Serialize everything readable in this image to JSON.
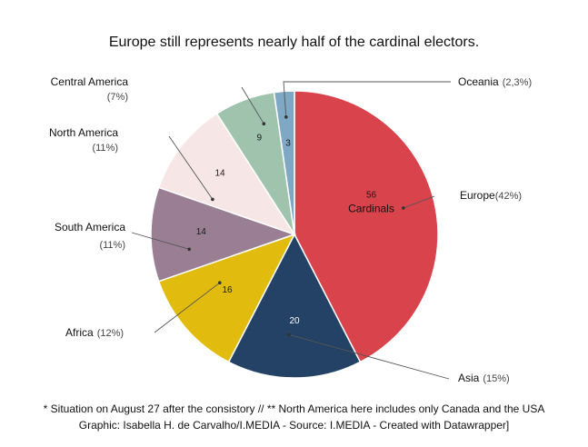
{
  "chart_data": {
    "type": "pie",
    "title": "Europe still represents nearly half of the cardinal electors.",
    "slices": [
      {
        "name": "Europe",
        "value": 56,
        "pct_label": "(42%)",
        "color": "#d9434b",
        "label_side": "right",
        "value_color": "#1a1a1a"
      },
      {
        "name": "Asia",
        "value": 20,
        "pct_label": "(15%)",
        "color": "#234265",
        "label_side": "right",
        "value_color": "#ffffff"
      },
      {
        "name": "Africa",
        "value": 16,
        "pct_label": "(12%)",
        "color": "#e1bb0e",
        "label_side": "left",
        "value_color": "#1a1a1a"
      },
      {
        "name": "South America",
        "value": 14,
        "pct_label": "(11%)",
        "color": "#9a7f94",
        "label_side": "left",
        "value_color": "#1a1a1a"
      },
      {
        "name": "North America",
        "value": 14,
        "pct_label": "(11%)",
        "color": "#f7e6e6",
        "label_side": "left",
        "value_color": "#1a1a1a"
      },
      {
        "name": "Central America",
        "value": 9,
        "pct_label": "(7%)",
        "color": "#9fc3ad",
        "label_side": "left",
        "value_color": "#1a1a1a"
      },
      {
        "name": "Oceania",
        "value": 3,
        "pct_label": "(2,3%)",
        "color": "#7fa8c4",
        "label_side": "right",
        "value_color": "#1a1a1a"
      }
    ],
    "center_annotation": "Cardinals"
  },
  "footer": {
    "line1": "* Situation on August 27 after the consistory // ** North America here includes only Canada and the USA",
    "line2": "Graphic: Isabella H. de Carvalho/I.MEDIA - Source: I.MEDIA - Created with Datawrapper]"
  }
}
